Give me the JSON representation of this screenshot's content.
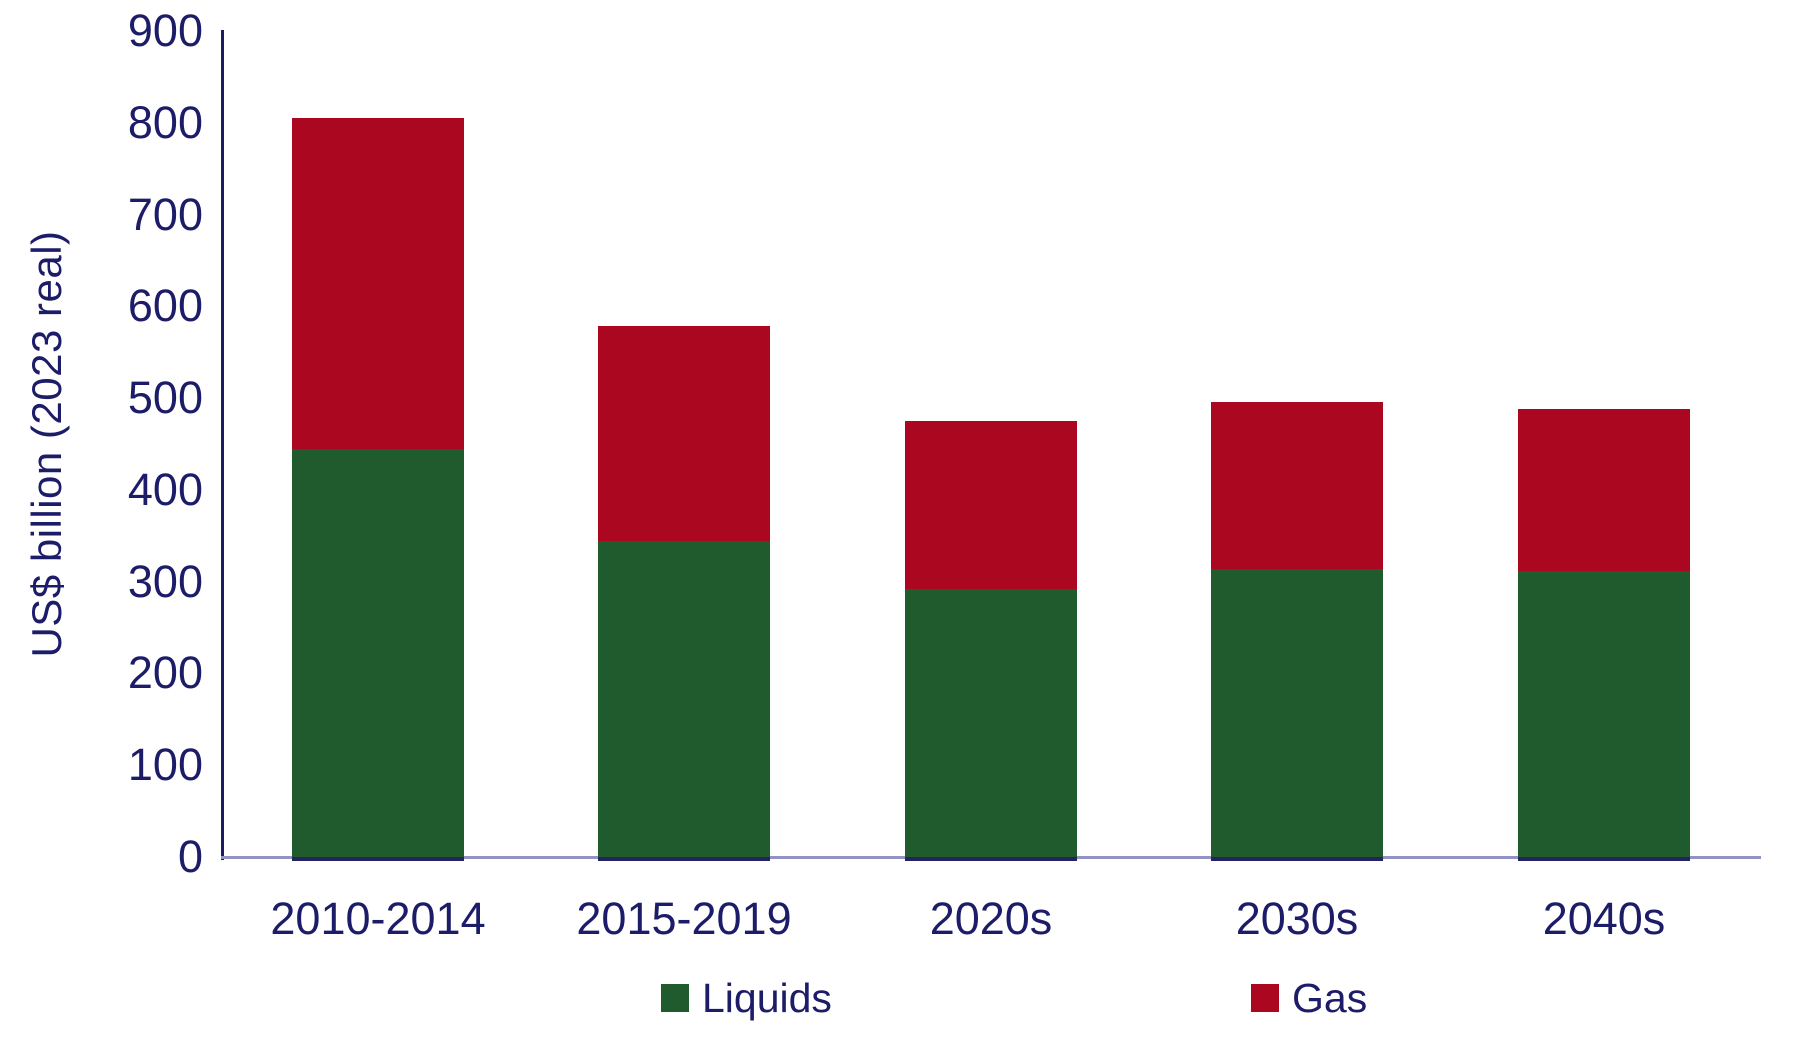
{
  "chart_data": {
    "type": "bar",
    "stacked": true,
    "ylabel": "US$ billion (2023 real)",
    "xlabel": "",
    "ylim": [
      0,
      900
    ],
    "ytick_step": 100,
    "grid": false,
    "legend_position": "bottom",
    "categories": [
      "2010-2014",
      "2015-2019",
      "2020s",
      "2030s",
      "2040s"
    ],
    "series": [
      {
        "name": "Liquids",
        "color": "#1F5B2C",
        "values": [
          445,
          344,
          292,
          314,
          312
        ]
      },
      {
        "name": "Gas",
        "color": "#AB0721",
        "values": [
          360,
          235,
          183,
          182,
          176
        ]
      }
    ]
  },
  "colors": {
    "axis_text": "#1C1C69",
    "y_axis_line": "#1B1B63",
    "baseline": "#9292C7",
    "bar_foot": "#23235E"
  }
}
